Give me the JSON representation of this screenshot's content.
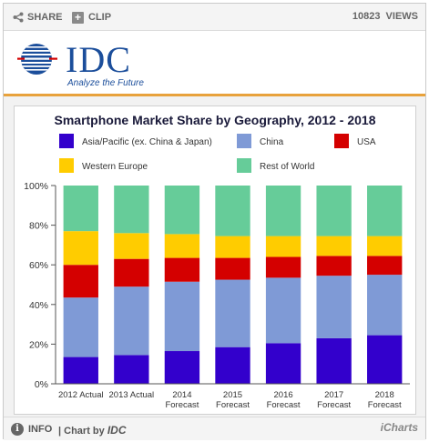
{
  "toolbar": {
    "share_label": "SHARE",
    "clip_label": "CLIP",
    "views_count": "10823",
    "views_label": "VIEWS"
  },
  "logo": {
    "name": "IDC",
    "tagline": "Analyze the Future"
  },
  "footer": {
    "info_label": "INFO",
    "chart_by_prefix": "| Chart by",
    "chart_by_brand": "IDC",
    "icharts_label": "iCharts"
  },
  "colors": {
    "asia": "#3300cc",
    "china": "#7f9ad6",
    "usa": "#d40000",
    "western_europe": "#ffcc00",
    "rest_of_world": "#66cc99",
    "brand": "#1b4e9b",
    "divider": "#e8a23c"
  },
  "chart_data": {
    "type": "bar",
    "stacked": true,
    "title": "Smartphone Market Share by Geography, 2012 - 2018",
    "categories": [
      [
        "2012 Actual"
      ],
      [
        "2013 Actual"
      ],
      [
        "2014",
        "Forecast"
      ],
      [
        "2015",
        "Forecast"
      ],
      [
        "2016",
        "Forecast"
      ],
      [
        "2017",
        "Forecast"
      ],
      [
        "2018",
        "Forecast"
      ]
    ],
    "series": [
      {
        "name": "Asia/Pacific (ex. China & Japan)",
        "color": "#3300cc",
        "values": [
          13.5,
          14.5,
          16.5,
          18.5,
          20.5,
          23,
          24.5
        ]
      },
      {
        "name": "China",
        "color": "#7f9ad6",
        "values": [
          30,
          34.5,
          35,
          34,
          33,
          31.5,
          30.5
        ]
      },
      {
        "name": "USA",
        "color": "#d40000",
        "values": [
          16.5,
          14,
          12,
          11,
          10.5,
          10,
          9.5
        ]
      },
      {
        "name": "Western Europe",
        "color": "#ffcc00",
        "values": [
          17,
          13,
          12,
          11,
          10.5,
          10,
          10
        ]
      },
      {
        "name": "Rest of World",
        "color": "#66cc99",
        "values": [
          23,
          24,
          24.5,
          25.5,
          25.5,
          25.5,
          25.5
        ]
      }
    ],
    "yticks": [
      "0%",
      "20%",
      "40%",
      "60%",
      "80%",
      "100%"
    ],
    "ylim": [
      0,
      100
    ],
    "legend_position": "top",
    "grid": false
  }
}
